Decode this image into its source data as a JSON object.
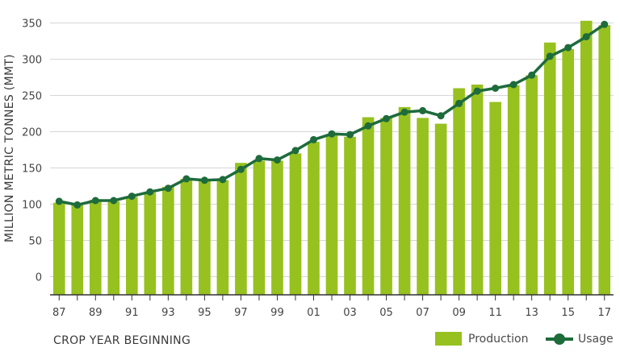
{
  "chart_data": {
    "type": "bar",
    "ylabel": "MILLION METRIC TONNES (MMT)",
    "xlabel": "CROP YEAR BEGINNING",
    "ylim": [
      -25,
      375
    ],
    "yticks": [
      0,
      50,
      100,
      150,
      200,
      250,
      300,
      350
    ],
    "grid": true,
    "legend_position": "bottom-right",
    "categories": [
      "87",
      "88",
      "89",
      "90",
      "91",
      "92",
      "93",
      "94",
      "95",
      "96",
      "97",
      "98",
      "99",
      "00",
      "01",
      "02",
      "03",
      "04",
      "05",
      "06",
      "07",
      "08",
      "09",
      "10",
      "11",
      "12",
      "13",
      "14",
      "15",
      "16",
      "17"
    ],
    "xtick_labels": [
      "87",
      "89",
      "91",
      "93",
      "95",
      "97",
      "99",
      "01",
      "03",
      "05",
      "07",
      "09",
      "11",
      "13",
      "15",
      "17"
    ],
    "series": [
      {
        "name": "Production",
        "kind": "bar",
        "color": "#97c11f",
        "values": [
          102,
          101,
          106,
          104,
          110,
          116,
          124,
          135,
          133,
          133,
          157,
          160,
          160,
          170,
          186,
          195,
          193,
          220,
          219,
          234,
          219,
          211,
          260,
          265,
          241,
          264,
          278,
          323,
          314,
          353,
          347
        ]
      },
      {
        "name": "Usage",
        "kind": "line",
        "color": "#1e6b3c",
        "values": [
          104,
          99,
          105,
          105,
          111,
          117,
          122,
          135,
          133,
          134,
          148,
          163,
          161,
          174,
          189,
          197,
          196,
          208,
          218,
          227,
          229,
          222,
          239,
          256,
          260,
          265,
          278,
          304,
          316,
          331,
          348
        ]
      }
    ]
  }
}
